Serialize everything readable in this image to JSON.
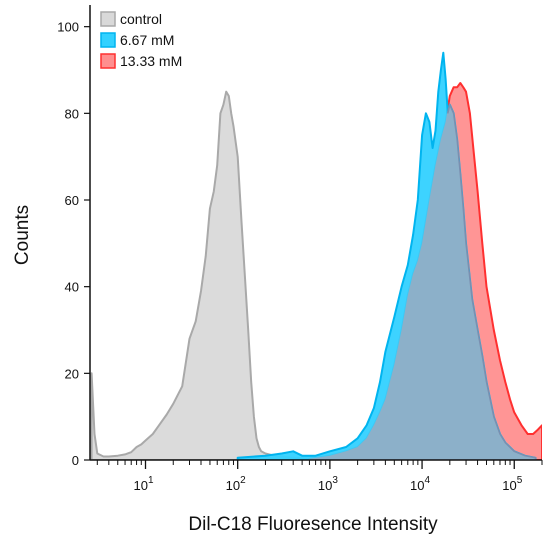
{
  "chart_data": {
    "type": "area",
    "title": "",
    "xlabel": "Dil-C18 Fluoresence Intensity",
    "ylabel": "Counts",
    "xscale": "log",
    "xlim": [
      2.5,
      200000
    ],
    "ylim": [
      0,
      105
    ],
    "yticks": [
      0,
      20,
      40,
      60,
      80,
      100
    ],
    "xticks": [
      {
        "base": "10",
        "exp": "1",
        "value": 10
      },
      {
        "base": "10",
        "exp": "2",
        "value": 100
      },
      {
        "base": "10",
        "exp": "3",
        "value": 1000
      },
      {
        "base": "10",
        "exp": "4",
        "value": 10000
      },
      {
        "base": "10",
        "exp": "5",
        "value": 100000
      }
    ],
    "grid": false,
    "legend_position": "top-left",
    "series": [
      {
        "name": "control",
        "fill": "#d9d9d9",
        "stroke": "#a9a9a9",
        "x": [
          2.6,
          2.8,
          3.0,
          3.5,
          4,
          5,
          6,
          7,
          8,
          9,
          10,
          12,
          14,
          17,
          20,
          25,
          30,
          35,
          40,
          45,
          50,
          55,
          60,
          65,
          70,
          75,
          80,
          85,
          90,
          100,
          110,
          120,
          130,
          140,
          150,
          160,
          170,
          180,
          200,
          250,
          300,
          400,
          600,
          1000
        ],
        "y": [
          20,
          6,
          1.5,
          0.8,
          0.8,
          1.0,
          1.3,
          1.8,
          3.0,
          3.6,
          4.5,
          6.0,
          8.0,
          10.5,
          13.0,
          17.0,
          28.0,
          32.0,
          39.0,
          47.0,
          58.0,
          62.0,
          68.0,
          80.0,
          82.0,
          85.0,
          84.0,
          80.0,
          77.0,
          70.0,
          55.0,
          42.0,
          30.0,
          18.0,
          10.0,
          5.0,
          3.0,
          2.0,
          1.5,
          1.0,
          0.8,
          0.5,
          0.3,
          0
        ]
      },
      {
        "name": "6.67 mM",
        "fill": "#33d1ff",
        "stroke": "#00b4ef",
        "x": [
          100,
          200,
          300,
          400,
          500,
          700,
          1000,
          1500,
          2000,
          2500,
          3000,
          3500,
          4000,
          5000,
          6000,
          7000,
          8000,
          9000,
          10000,
          11000,
          12000,
          13000,
          14000,
          15000,
          16000,
          17000,
          18000,
          19000,
          20000,
          22000,
          24000,
          26000,
          28000,
          30000,
          35000,
          40000,
          45000,
          50000,
          60000,
          70000,
          80000,
          100000,
          130000,
          170000
        ],
        "y": [
          0.5,
          1,
          1.5,
          2,
          1,
          1,
          2,
          3,
          5,
          8,
          12,
          18,
          25,
          33,
          40,
          45,
          52,
          60,
          75,
          80,
          78,
          72,
          76,
          85,
          90,
          94,
          88,
          80,
          82,
          80,
          74,
          66,
          58,
          50,
          37,
          30,
          24,
          18,
          10,
          6,
          4,
          2,
          1,
          0.5
        ]
      },
      {
        "name": "13.33 mM",
        "fill": "#ff8f8f",
        "stroke": "#ff3030",
        "x": [
          600,
          1000,
          1500,
          2000,
          2500,
          3000,
          3500,
          4000,
          5000,
          6000,
          7000,
          8000,
          9000,
          10000,
          12000,
          14000,
          16000,
          18000,
          20000,
          22000,
          24000,
          26000,
          28000,
          30000,
          33000,
          36000,
          40000,
          45000,
          50000,
          60000,
          70000,
          80000,
          90000,
          100000,
          120000,
          140000,
          160000,
          180000,
          200000
        ],
        "y": [
          0.3,
          1,
          2,
          3,
          5,
          8,
          11,
          14,
          22,
          30,
          38,
          43,
          46,
          50,
          60,
          68,
          74,
          78,
          84,
          86,
          86,
          87,
          86,
          85,
          80,
          72,
          62,
          50,
          40,
          30,
          23,
          18,
          14,
          11,
          8,
          6,
          6,
          7,
          8
        ]
      }
    ],
    "overlap_fill": "#8cb0c9"
  }
}
